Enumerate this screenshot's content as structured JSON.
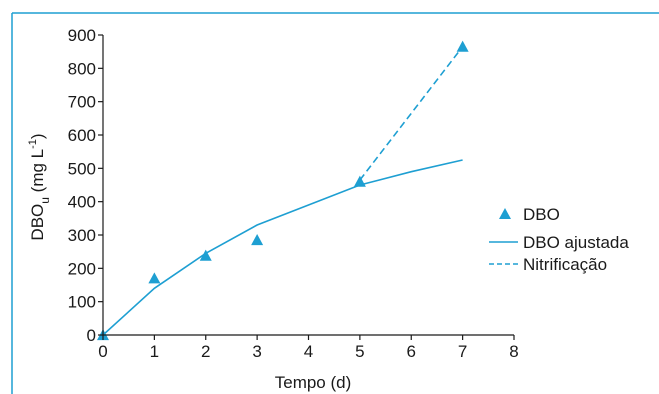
{
  "colors": {
    "accent": "#1e9fd2",
    "text": "#1a1a1a",
    "frame": "#1e9fd2"
  },
  "chart_data": {
    "type": "line",
    "xlabel": "Tempo (d)",
    "ylabel": {
      "main": "DBO",
      "subscript": "u",
      "unit_open": " (mg L",
      "unit_sup": "-1",
      "unit_close": ")"
    },
    "xlim": [
      0,
      8
    ],
    "ylim": [
      0,
      900
    ],
    "xticks": [
      0,
      1,
      2,
      3,
      4,
      5,
      6,
      7,
      8
    ],
    "yticks": [
      0,
      100,
      200,
      300,
      400,
      500,
      600,
      700,
      800,
      900
    ],
    "grid": false,
    "legend_position": "right",
    "series": [
      {
        "name": "DBO",
        "kind": "scatter",
        "marker": "triangle",
        "x": [
          0,
          1,
          2,
          3,
          5,
          7
        ],
        "y": [
          0,
          170,
          238,
          285,
          460,
          865
        ]
      },
      {
        "name": "DBO ajustada",
        "kind": "line",
        "style": "solid",
        "x": [
          0,
          1,
          2,
          3,
          4,
          5,
          6,
          7
        ],
        "y": [
          0,
          140,
          245,
          330,
          390,
          450,
          490,
          525
        ]
      },
      {
        "name": "Nitrificação",
        "kind": "line",
        "style": "dashed",
        "x": [
          5,
          7
        ],
        "y": [
          465,
          865
        ]
      }
    ]
  }
}
